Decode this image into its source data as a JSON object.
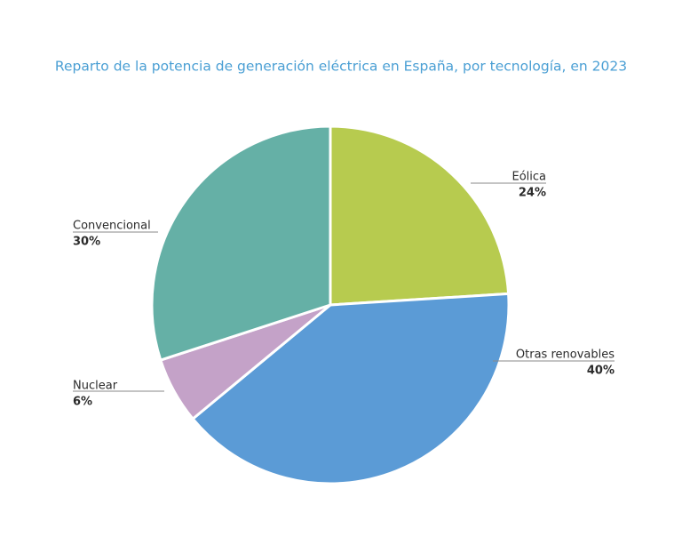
{
  "chart_data": {
    "type": "pie",
    "title": "Reparto de la potencia de generación eléctrica en España, por tecnología, en 2023",
    "categories": [
      "Eólica",
      "Otras renovables",
      "Nuclear",
      "Convencional"
    ],
    "values": [
      24,
      40,
      6,
      30
    ],
    "value_labels": [
      "24%",
      "40%",
      "6%",
      "30%"
    ],
    "colors": [
      "#b7cb4f",
      "#5b9bd6",
      "#c4a2c8",
      "#65b0a6"
    ]
  }
}
